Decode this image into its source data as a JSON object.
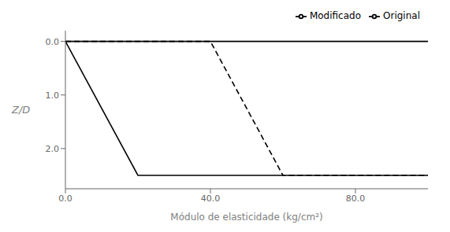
{
  "chart_data": {
    "type": "line",
    "xlabel": "Módulo de elasticidade (kg/cm²)",
    "ylabel": "Z/D",
    "xlim": [
      0.0,
      100.0
    ],
    "ylim": [
      2.75,
      -0.2
    ],
    "xticks": [
      {
        "value": 0.0,
        "label": "0.0"
      },
      {
        "value": 40.0,
        "label": "40.0"
      },
      {
        "value": 80.0,
        "label": "80.0"
      }
    ],
    "yticks": [
      {
        "value": 0.0,
        "label": "0.0"
      },
      {
        "value": 1.0,
        "label": "1.0"
      },
      {
        "value": 2.0,
        "label": "2.0"
      }
    ],
    "series": [
      {
        "color": "#000000",
        "line_style": "solid",
        "x": [
          0.0,
          100.0
        ],
        "values": [
          0.0,
          0.0
        ]
      },
      {
        "name": "Original",
        "color": "#000000",
        "line_style": "solid",
        "x": [
          0.0,
          20.0,
          100.0
        ],
        "values": [
          0.0,
          2.5,
          2.5
        ]
      },
      {
        "name": "Modificado",
        "color": "#000000",
        "line_style": "dashed",
        "x": [
          0.0,
          40.0,
          60.0,
          100.0
        ],
        "values": [
          0.0,
          0.0,
          2.5,
          2.5
        ]
      }
    ],
    "legend": "upper right",
    "grid": false
  }
}
